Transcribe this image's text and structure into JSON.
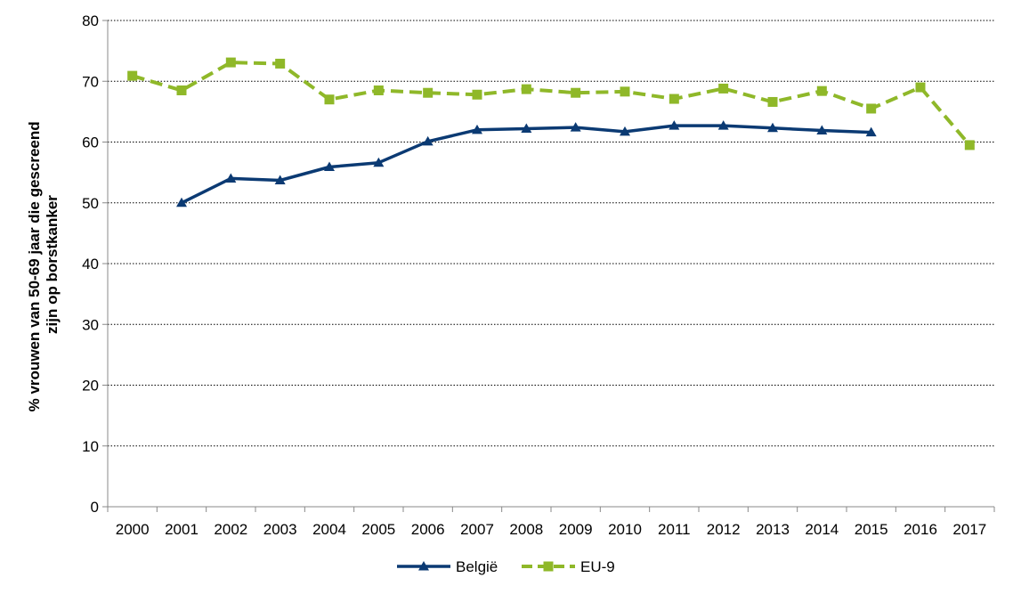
{
  "chart_data": {
    "type": "line",
    "title": "",
    "xlabel": "",
    "ylabel_lines": [
      "% vrouwen van 50-69 jaar die gescreend",
      "zijn op borstkanker"
    ],
    "ylim": [
      0,
      80
    ],
    "yticks": [
      "0",
      "10",
      "20",
      "30",
      "40",
      "50",
      "60",
      "70",
      "80"
    ],
    "categories": [
      "2000",
      "2001",
      "2002",
      "2003",
      "2004",
      "2005",
      "2006",
      "2007",
      "2008",
      "2009",
      "2010",
      "2011",
      "2012",
      "2013",
      "2014",
      "2015",
      "2016",
      "2017"
    ],
    "grid": true,
    "legend_position": "bottom",
    "series": [
      {
        "name": "België",
        "color": "#0b3a73",
        "marker": "triangle",
        "dash": "solid",
        "values": [
          null,
          50.0,
          54.0,
          53.7,
          55.9,
          56.6,
          60.1,
          62.0,
          62.2,
          62.4,
          61.7,
          62.7,
          62.7,
          62.3,
          61.9,
          61.6,
          null,
          null
        ]
      },
      {
        "name": "EU-9",
        "color": "#8fb829",
        "marker": "square",
        "dash": "dashed",
        "values": [
          70.9,
          68.5,
          73.1,
          72.9,
          67.0,
          68.5,
          68.1,
          67.8,
          68.7,
          68.1,
          68.3,
          67.1,
          68.8,
          66.6,
          68.4,
          65.5,
          69.0,
          59.5
        ]
      }
    ]
  }
}
